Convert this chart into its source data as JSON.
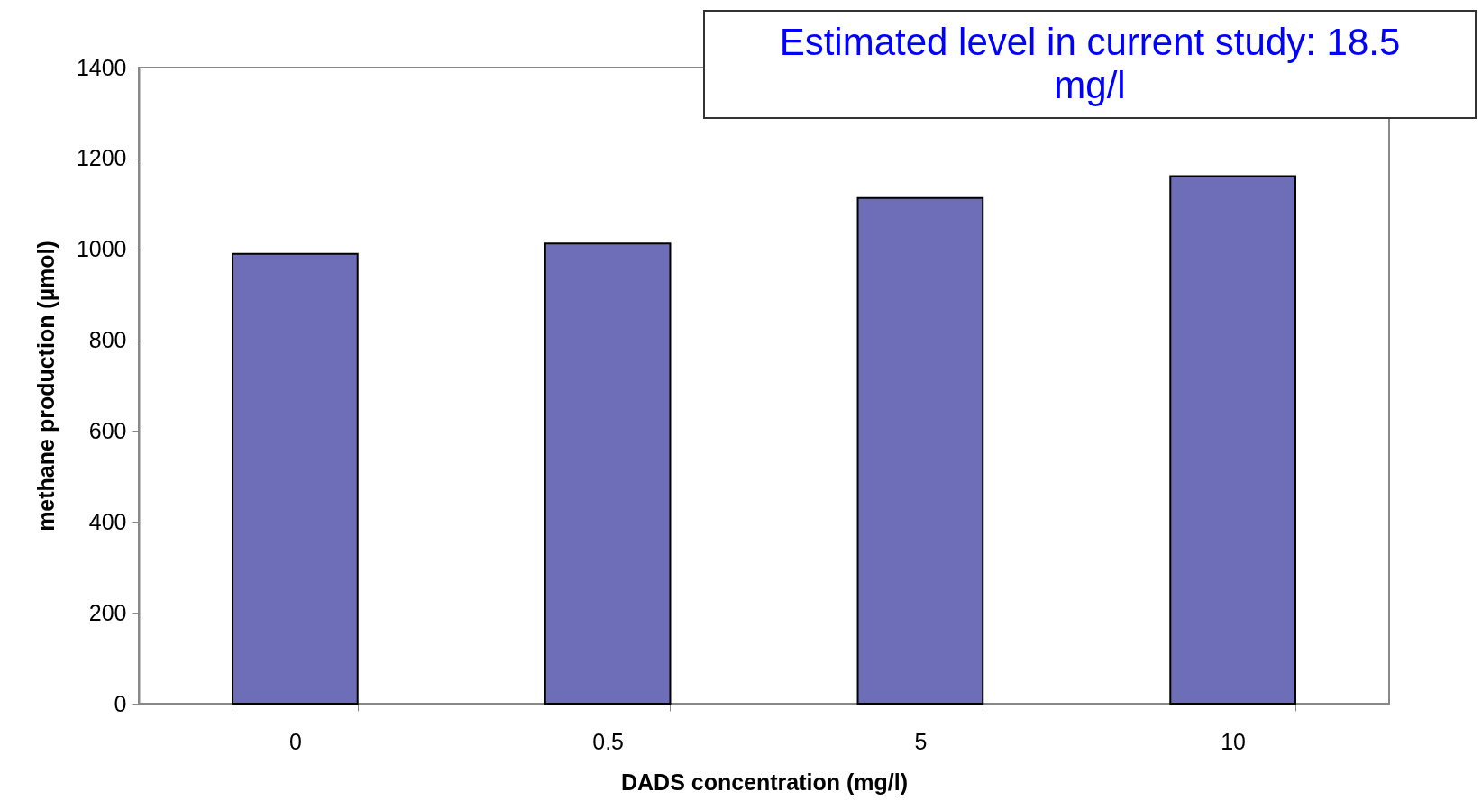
{
  "chart_data": {
    "type": "bar",
    "xlabel": "DADS concentration (mg/l)",
    "ylabel": "methane production (µmol)",
    "categories": [
      "0",
      "0.5",
      "5",
      "10"
    ],
    "values": [
      990,
      1013,
      1113,
      1161
    ],
    "color": "#6e6eb8",
    "ylim": [
      0,
      1400
    ],
    "yticks": [
      0,
      200,
      400,
      600,
      800,
      1000,
      1200,
      1400
    ],
    "grid": false,
    "annotations": [
      "Estimated level in current study: 18.5 mg/l"
    ]
  }
}
